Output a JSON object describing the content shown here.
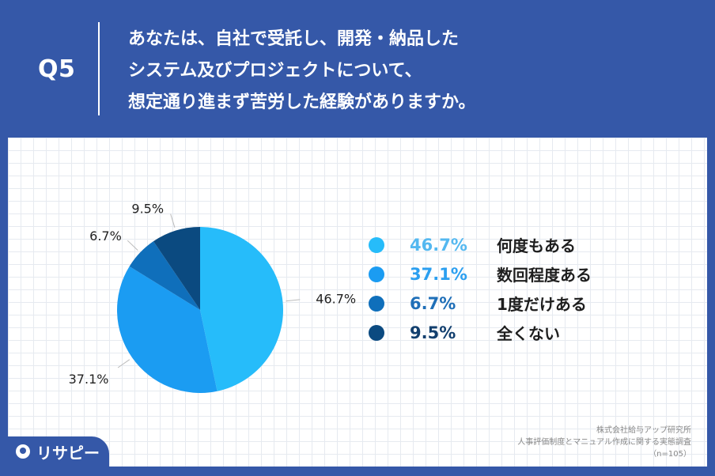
{
  "header": {
    "question_number": "Q5",
    "question_lines": [
      "あなたは、自社で受託し、開発・納品した",
      "システム及びプロジェクトについて、",
      "想定通り進まず苦労した経験がありますか。"
    ]
  },
  "chart_data": {
    "type": "pie",
    "categories": [
      "何度もある",
      "数回程度ある",
      "1度だけある",
      "全くない"
    ],
    "values": [
      46.7,
      37.1,
      6.7,
      9.5
    ],
    "value_labels": [
      "46.7%",
      "37.1%",
      "6.7%",
      "9.5%"
    ],
    "colors": [
      "#26bcfa",
      "#1b9cf2",
      "#0f6fbb",
      "#0b4a80"
    ],
    "legend_text_colors": [
      "#54b8f0",
      "#2b9ff0",
      "#1f6fb8",
      "#123f6e"
    ],
    "start_angle_deg": 0,
    "direction": "clockwise",
    "legend_position": "right"
  },
  "source": {
    "lines": [
      "株式会社給与アップ研究所",
      "人事評価制度とマニュアル作成に関する実態調査",
      "（n=105）"
    ]
  },
  "logo": {
    "text": "リサピー"
  }
}
